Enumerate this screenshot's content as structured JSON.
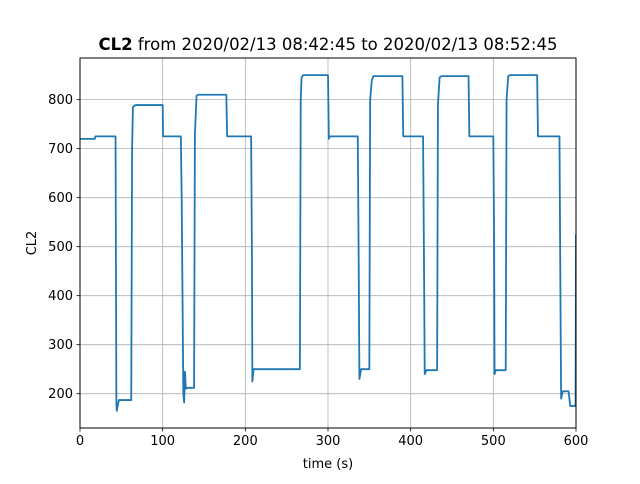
{
  "chart_data": {
    "type": "line",
    "title": {
      "bold": "CL2",
      "rest": " from 2020/02/13 08:42:45 to 2020/02/13 08:52:45"
    },
    "xlabel": "time (s)",
    "ylabel": "CL2",
    "xlim": [
      0,
      600
    ],
    "ylim": [
      130,
      885
    ],
    "xticks": [
      0,
      100,
      200,
      300,
      400,
      500,
      600
    ],
    "yticks": [
      200,
      300,
      400,
      500,
      600,
      700,
      800
    ],
    "grid": true,
    "series": [
      {
        "color": "#1f77b4",
        "x": [
          0,
          18,
          18.5,
          43,
          44,
          44.5,
          47,
          62,
          63,
          64,
          66,
          68,
          100,
          100.5,
          102,
          122,
          123,
          125,
          126,
          127,
          128,
          130,
          138,
          139,
          141,
          143,
          177,
          178,
          207,
          208,
          208.5,
          210,
          266,
          267,
          268,
          270,
          300,
          301,
          302,
          304,
          336,
          337,
          338,
          340,
          350,
          351,
          353,
          355,
          390,
          391,
          393,
          415,
          416,
          417,
          419,
          432,
          433,
          435,
          437,
          470,
          471,
          473,
          500,
          501,
          501.5,
          503,
          515,
          516,
          518,
          520,
          553,
          554,
          556,
          580,
          581,
          582,
          584,
          590,
          591,
          593,
          598,
          599,
          599.5,
          600
        ],
        "y": [
          720,
          720,
          725,
          725,
          180,
          165,
          187,
          187,
          700,
          785,
          788,
          789,
          789,
          725,
          725,
          725,
          600,
          200,
          182,
          245,
          210,
          212,
          212,
          730,
          808,
          810,
          810,
          725,
          725,
          480,
          225,
          250,
          250,
          800,
          845,
          850,
          850,
          720,
          725,
          725,
          725,
          500,
          230,
          250,
          250,
          800,
          840,
          848,
          848,
          725,
          725,
          725,
          500,
          240,
          248,
          248,
          790,
          845,
          848,
          848,
          725,
          725,
          725,
          500,
          240,
          248,
          248,
          800,
          848,
          850,
          850,
          725,
          725,
          725,
          450,
          190,
          205,
          205,
          205,
          175,
          175,
          175,
          180,
          525
        ]
      }
    ]
  }
}
